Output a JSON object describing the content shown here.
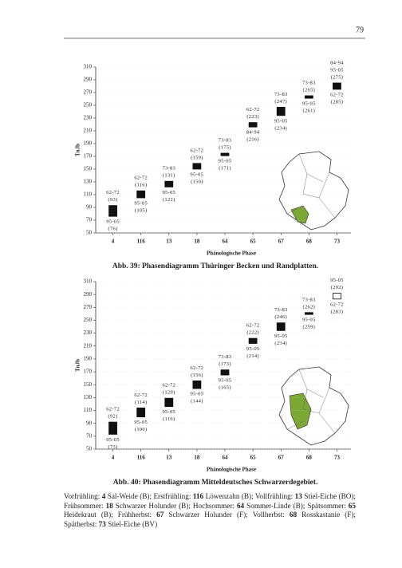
{
  "page_number": "79",
  "chart_data": [
    {
      "type": "range",
      "ylabel": "TnJb",
      "xlabel": "Phänologische Phase",
      "caption": "Abb. 39: Phasendiagramm Thüringer Becken und Randplatten.",
      "categories": [
        "4",
        "116",
        "13",
        "18",
        "64",
        "65",
        "67",
        "68",
        "73"
      ],
      "fills": [
        "#111",
        "#111",
        "#111",
        "#111",
        "#111",
        "#111",
        "#111",
        "#111",
        "#111"
      ],
      "ylim": [
        50,
        310
      ],
      "yticks": [
        50,
        70,
        90,
        110,
        130,
        150,
        170,
        190,
        210,
        230,
        250,
        270,
        290,
        310
      ],
      "phases": [
        [
          {
            "period": "62-72",
            "value": 93,
            "value_label": "(93)"
          },
          {
            "period": "95-05",
            "value": 76,
            "value_label": "(76)"
          }
        ],
        [
          {
            "period": "62-72",
            "value": 116,
            "value_label": "(116)"
          },
          {
            "period": "95-05",
            "value": 105,
            "value_label": "(105)"
          }
        ],
        [
          {
            "period": "73-83",
            "value": 131,
            "value_label": "(131)"
          },
          {
            "period": "95-05",
            "value": 122,
            "value_label": "(122)"
          }
        ],
        [
          {
            "period": "62-72",
            "value": 159,
            "value_label": "(159)"
          },
          {
            "period": "95-05",
            "value": 150,
            "value_label": "(150)"
          }
        ],
        [
          {
            "period": "73-83",
            "value": 175,
            "value_label": "(175)"
          },
          {
            "period": "95-05",
            "value": 171,
            "value_label": "(171)"
          }
        ],
        [
          {
            "period": "62-72",
            "value": 223,
            "value_label": "(223)"
          },
          {
            "period": "84-94",
            "value": 216,
            "value_label": "(216)"
          }
        ],
        [
          {
            "period": "73-83",
            "value": 247,
            "value_label": "(247)"
          },
          {
            "period": "95-05",
            "value": 234,
            "value_label": "(234)"
          }
        ],
        [
          {
            "period": "73-83",
            "value": 265,
            "value_label": "(265)"
          },
          {
            "period": "95-05",
            "value": 261,
            "value_label": "(261)"
          }
        ],
        [
          {
            "note": "84-94",
            "period": "95-05",
            "value": 275,
            "value_label": "(275)"
          },
          {
            "period": "62-72",
            "value": 285,
            "value_label": "(285)"
          }
        ]
      ]
    },
    {
      "type": "range",
      "ylabel": "TnJb",
      "xlabel": "Phänologische Phase",
      "caption": "Abb. 40: Phasendiagramm Mitteldeutsches Schwarzerdegebiet.",
      "categories": [
        "4",
        "116",
        "13",
        "18",
        "64",
        "65",
        "67",
        "68",
        "73"
      ],
      "fills": [
        "#111",
        "#111",
        "#111",
        "#111",
        "#111",
        "#111",
        "#111",
        "#111",
        "#fff"
      ],
      "ylim": [
        50,
        310
      ],
      "yticks": [
        50,
        70,
        90,
        110,
        130,
        150,
        170,
        190,
        210,
        230,
        250,
        270,
        290,
        310
      ],
      "phases": [
        [
          {
            "period": "62-72",
            "value": 92,
            "value_label": "(92)"
          },
          {
            "period": "95-05",
            "value": 73,
            "value_label": "(73)"
          }
        ],
        [
          {
            "period": "62-72",
            "value": 114,
            "value_label": "(114)"
          },
          {
            "period": "95-05",
            "value": 100,
            "value_label": "(100)"
          }
        ],
        [
          {
            "period": "62-72",
            "value": 129,
            "value_label": "(129)"
          },
          {
            "period": "95-05",
            "value": 116,
            "value_label": "(116)"
          }
        ],
        [
          {
            "period": "62-72",
            "value": 156,
            "value_label": "(156)"
          },
          {
            "period": "95-05",
            "value": 144,
            "value_label": "(144)"
          }
        ],
        [
          {
            "period": "73-83",
            "value": 173,
            "value_label": "(173)"
          },
          {
            "period": "95-05",
            "value": 165,
            "value_label": "(165)"
          }
        ],
        [
          {
            "period": "62-72",
            "value": 222,
            "value_label": "(222)"
          },
          {
            "period": "95-05",
            "value": 214,
            "value_label": "(214)"
          }
        ],
        [
          {
            "period": "73-83",
            "value": 246,
            "value_label": "(246)"
          },
          {
            "period": "95-05",
            "value": 234,
            "value_label": "(234)"
          }
        ],
        [
          {
            "period": "73-83",
            "value": 262,
            "value_label": "(262)"
          },
          {
            "period": "95-05",
            "value": 259,
            "value_label": "(259)"
          }
        ],
        [
          {
            "period": "95-05",
            "value": 292,
            "value_label": "(292)"
          },
          {
            "period": "62-72",
            "value": 283,
            "value_label": "(283)"
          }
        ]
      ]
    }
  ],
  "footer": [
    "Vorfrühling: ",
    "4",
    " Sal-Weide (B); Erstfrühling: ",
    "116",
    " Löwenzahn (B); Vollfrühling: ",
    "13",
    " Stiel-Eiche (BO); Frühsommer: ",
    "18",
    " Schwarzer Holunder (B); Hochsommer: ",
    "64",
    " Sommer-Linde (B); Spätsommer: ",
    "65",
    " Heidekraut (B); Frühherbst: ",
    "67",
    " Schwarzer Holunder (F); Vollherbst: ",
    "68",
    " Rosskastanie (F); Spätherbst: ",
    "73",
    " Stiel-Eiche (BV)"
  ]
}
